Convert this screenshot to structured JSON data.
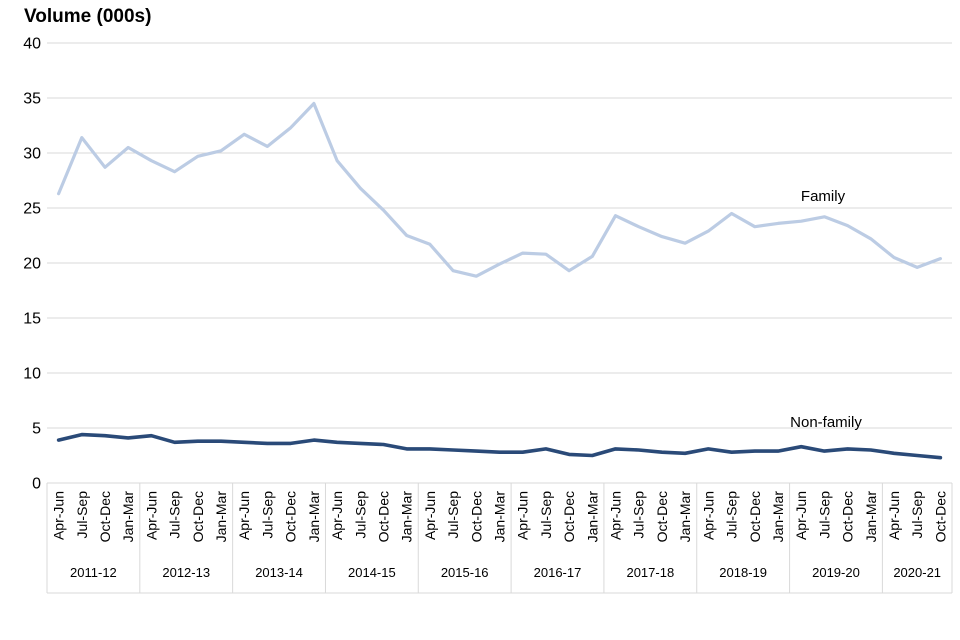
{
  "chart_data": {
    "type": "line",
    "title": "Volume (000s)",
    "ylim": [
      0,
      40
    ],
    "ytick_step": 5,
    "ytick_labels": [
      "0",
      "5",
      "10",
      "15",
      "20",
      "25",
      "30",
      "35",
      "40"
    ],
    "grid": "horizontal",
    "legend_position": "inline-labels",
    "grid_color": "#d9d9d9",
    "text_color": "#000000",
    "quarter_labels": [
      "Apr-Jun",
      "Jul-Sep",
      "Oct-Dec",
      "Jan-Mar"
    ],
    "year_groups": [
      {
        "label": "2011-12",
        "quarters": 4
      },
      {
        "label": "2012-13",
        "quarters": 4
      },
      {
        "label": "2013-14",
        "quarters": 4
      },
      {
        "label": "2014-15",
        "quarters": 4
      },
      {
        "label": "2015-16",
        "quarters": 4
      },
      {
        "label": "2016-17",
        "quarters": 4
      },
      {
        "label": "2017-18",
        "quarters": 4
      },
      {
        "label": "2018-19",
        "quarters": 4
      },
      {
        "label": "2019-20",
        "quarters": 4
      },
      {
        "label": "2020-21",
        "quarters": 3
      }
    ],
    "series": [
      {
        "name": "Family",
        "color": "#bccce4",
        "stroke_width": 3.2,
        "values": [
          26.3,
          31.4,
          28.7,
          30.5,
          29.3,
          28.3,
          29.7,
          30.2,
          31.7,
          30.6,
          32.3,
          34.5,
          29.3,
          26.8,
          24.8,
          22.5,
          21.7,
          19.3,
          18.8,
          19.9,
          20.9,
          20.8,
          19.3,
          20.6,
          24.3,
          23.3,
          22.4,
          21.8,
          22.9,
          24.5,
          23.3,
          23.6,
          23.8,
          24.2,
          23.4,
          22.2,
          20.5,
          19.6,
          20.4
        ]
      },
      {
        "name": "Non-family",
        "color": "#2a4a78",
        "stroke_width": 3.6,
        "values": [
          3.9,
          4.4,
          4.3,
          4.1,
          4.3,
          3.7,
          3.8,
          3.8,
          3.7,
          3.6,
          3.6,
          3.9,
          3.7,
          3.6,
          3.5,
          3.1,
          3.1,
          3.0,
          2.9,
          2.8,
          2.8,
          3.1,
          2.6,
          2.5,
          3.1,
          3.0,
          2.8,
          2.7,
          3.1,
          2.8,
          2.9,
          2.9,
          3.3,
          2.9,
          3.1,
          3.0,
          2.7,
          2.5,
          2.3
        ]
      }
    ]
  }
}
